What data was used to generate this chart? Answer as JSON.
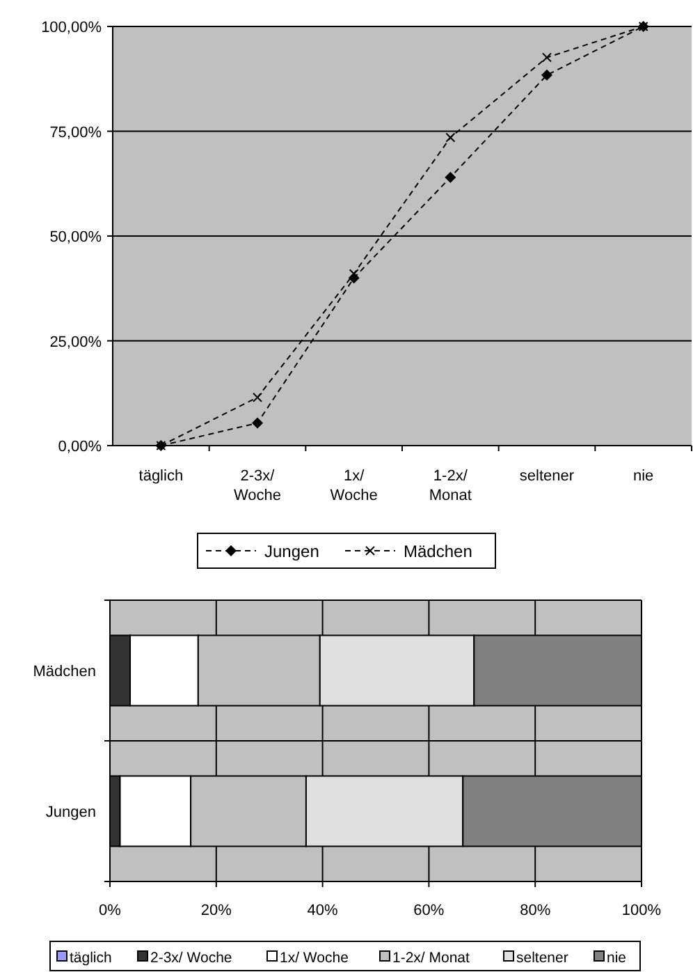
{
  "chart_data": [
    {
      "type": "line",
      "categories": [
        "täglich",
        "2-3x/ Woche",
        "1x/ Woche",
        "1-2x/ Monat",
        "seltener",
        "nie"
      ],
      "series": [
        {
          "name": "Jungen",
          "color": "#000000",
          "marker": "diamond",
          "values": [
            0,
            5.4,
            40,
            64,
            88.4,
            100
          ]
        },
        {
          "name": "Mädchen",
          "color": "#000000",
          "marker": "cross",
          "values": [
            0,
            11.5,
            41,
            73.5,
            92.6,
            100
          ]
        }
      ],
      "ylim": [
        0,
        100
      ],
      "yticks": [
        {
          "value": 0,
          "label": "0,00%"
        },
        {
          "value": 25,
          "label": "25,00%"
        },
        {
          "value": 50,
          "label": "50,00%"
        },
        {
          "value": 75,
          "label": "75,00%"
        },
        {
          "value": 100,
          "label": "100,00%"
        }
      ],
      "grid": "y",
      "legend": "bottom",
      "line_style": "dashed"
    },
    {
      "type": "bar",
      "orientation": "horizontal",
      "stacked": true,
      "categories": [
        "Mädchen",
        "Jungen"
      ],
      "series": [
        {
          "name": "täglich",
          "color": "#9999ff",
          "values": [
            0,
            0
          ]
        },
        {
          "name": "2-3x/ Woche",
          "color": "#333333",
          "values": [
            3.8,
            1.9
          ]
        },
        {
          "name": "1x/ Woche",
          "color": "#ffffff",
          "values": [
            12.8,
            13.3
          ]
        },
        {
          "name": "1-2x/ Monat",
          "color": "#c0c0c0",
          "values": [
            22.9,
            21.7
          ]
        },
        {
          "name": "seltener",
          "color": "#e0e0e0",
          "values": [
            29,
            29.5
          ]
        },
        {
          "name": "nie",
          "color": "#808080",
          "values": [
            31.5,
            33.6
          ]
        }
      ],
      "xlim": [
        0,
        100
      ],
      "xticks": [
        {
          "value": 0,
          "label": "0%"
        },
        {
          "value": 20,
          "label": "20%"
        },
        {
          "value": 40,
          "label": "40%"
        },
        {
          "value": 60,
          "label": "60%"
        },
        {
          "value": 80,
          "label": "80%"
        },
        {
          "value": 100,
          "label": "100%"
        }
      ],
      "grid": true,
      "legend": "bottom"
    }
  ]
}
